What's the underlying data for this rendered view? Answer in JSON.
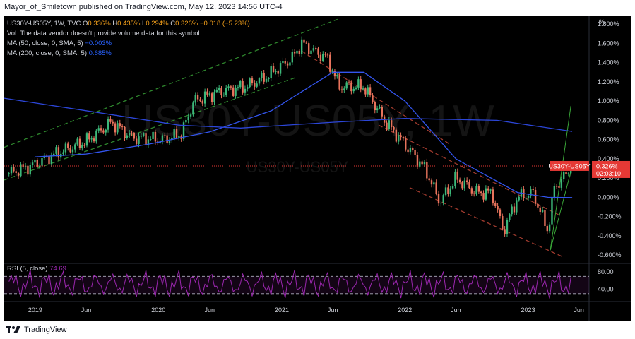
{
  "header": {
    "publisher_text": "Mayor_of_Smiletown published on TradingView.com, May 12, 2023 14:56 UTC-4"
  },
  "footer": {
    "brand": "TradingView",
    "logo_icon": "tradingview-logo-icon"
  },
  "colors": {
    "background": "#000000",
    "up_candle": "#3cb87a",
    "down_candle": "#e8735c",
    "ma50": "#3355ee",
    "ma200": "#2c46d8",
    "rsi_line": "#9c27b0",
    "channel_green": "#3aa838",
    "channel_red": "#c94a3a",
    "price_line": "#e53935",
    "axis_text": "#d1d4dc"
  },
  "legend": {
    "symbol_line": {
      "symbol": "US30Y-US05Y, 1W, TVC",
      "o_label": "O",
      "o_value": "0.336%",
      "h_label": "H",
      "h_value": "0.435%",
      "l_label": "L",
      "l_value": "0.294%",
      "c_label": "C",
      "c_value": "0.326%",
      "change": "−0.018 (−5.23%)"
    },
    "vol_line": "Vol: The data vendor doesn't provide volume data for this symbol.",
    "ma50_label": "MA (50, close, 0, SMA, 5)",
    "ma50_value": "−0.003%",
    "ma200_label": "MA (200, close, 0, SMA, 5)",
    "ma200_value": "0.685%",
    "rsi_label": "RSI (5, close)",
    "rsi_value": "74.69"
  },
  "price_badge": {
    "symbol": "US30Y-US05Y",
    "value": "0.326%",
    "countdown": "02:03:10"
  },
  "watermark": {
    "main": "US30Y-US05Y, 1W",
    "sub": "US30Y-US05Y"
  },
  "chart_data": {
    "type": "candlestick",
    "title": "US30Y-US05Y, 1W, TVC",
    "y_unit_label": "%",
    "y_range": [
      -0.68,
      1.86
    ],
    "y_ticks": [
      "1.800%",
      "1.600%",
      "1.400%",
      "1.200%",
      "1.000%",
      "0.800%",
      "0.600%",
      "0.400%",
      "0.200%",
      "0.000%",
      "-0.200%",
      "-0.400%",
      "-0.600%"
    ],
    "y_tick_values": [
      1.8,
      1.6,
      1.4,
      1.2,
      1.0,
      0.8,
      0.6,
      0.4,
      0.2,
      0.0,
      -0.2,
      -0.4,
      -0.6
    ],
    "x_range": [
      "2018-10",
      "2023-07"
    ],
    "x_tick_labels": [
      "2019",
      "Jun",
      "2020",
      "Jun",
      "2021",
      "Jun",
      "2022",
      "Jun",
      "2023",
      "Jun"
    ],
    "x_tick_dates": [
      "2019-01-01",
      "2019-06-01",
      "2020-01-01",
      "2020-06-01",
      "2021-01-01",
      "2021-06-01",
      "2022-01-01",
      "2022-06-01",
      "2023-01-01",
      "2023-06-01"
    ],
    "price_path": [
      [
        "2018-10-15",
        0.25
      ],
      [
        "2018-12-15",
        0.32
      ],
      [
        "2019-03-01",
        0.45
      ],
      [
        "2019-06-01",
        0.58
      ],
      [
        "2019-08-15",
        0.78
      ],
      [
        "2019-10-15",
        0.62
      ],
      [
        "2020-01-15",
        0.6
      ],
      [
        "2020-03-10",
        0.66
      ],
      [
        "2020-04-15",
        1.0
      ],
      [
        "2020-07-01",
        1.1
      ],
      [
        "2020-09-15",
        1.15
      ],
      [
        "2020-11-15",
        1.25
      ],
      [
        "2021-02-01",
        1.45
      ],
      [
        "2021-03-01",
        1.6
      ],
      [
        "2021-04-15",
        1.5
      ],
      [
        "2021-05-15",
        1.45
      ],
      [
        "2021-06-20",
        1.15
      ],
      [
        "2021-09-01",
        1.15
      ],
      [
        "2021-11-01",
        0.8
      ],
      [
        "2022-01-01",
        0.55
      ],
      [
        "2022-03-01",
        0.3
      ],
      [
        "2022-04-15",
        -0.05
      ],
      [
        "2022-06-01",
        0.2
      ],
      [
        "2022-08-01",
        0.05
      ],
      [
        "2022-09-15",
        0.05
      ],
      [
        "2022-10-20",
        -0.35
      ],
      [
        "2022-12-01",
        0.0
      ],
      [
        "2023-01-15",
        0.05
      ],
      [
        "2023-03-01",
        -0.35
      ],
      [
        "2023-03-20",
        0.1
      ],
      [
        "2023-04-15",
        0.2
      ],
      [
        "2023-05-12",
        0.326
      ]
    ],
    "last_close": 0.326,
    "series": [
      {
        "name": "MA (50, close, 0, SMA, 5)",
        "last_value": -0.003,
        "points": [
          [
            "2019-01-01",
            0.42
          ],
          [
            "2019-06-01",
            0.45
          ],
          [
            "2019-12-01",
            0.55
          ],
          [
            "2020-06-01",
            0.68
          ],
          [
            "2020-12-01",
            0.9
          ],
          [
            "2021-06-01",
            1.3
          ],
          [
            "2021-09-01",
            1.3
          ],
          [
            "2022-01-01",
            1.0
          ],
          [
            "2022-06-01",
            0.4
          ],
          [
            "2022-12-01",
            0.05
          ],
          [
            "2023-03-01",
            0.0
          ],
          [
            "2023-05-12",
            -0.003
          ]
        ]
      },
      {
        "name": "MA (200, close, 0, SMA, 5)",
        "last_value": 0.685,
        "points": [
          [
            "2018-10-01",
            1.03
          ],
          [
            "2019-06-01",
            0.9
          ],
          [
            "2020-03-01",
            0.75
          ],
          [
            "2020-09-01",
            0.72
          ],
          [
            "2021-06-01",
            0.78
          ],
          [
            "2022-01-01",
            0.82
          ],
          [
            "2022-10-01",
            0.8
          ],
          [
            "2023-05-12",
            0.685
          ]
        ]
      }
    ],
    "rsi": {
      "name": "RSI (5, close)",
      "last_value": 74.69,
      "levels": [
        70,
        30
      ],
      "ticks": [
        "80.00",
        "40.00"
      ],
      "tick_values": [
        80,
        40
      ]
    },
    "grid": false
  }
}
